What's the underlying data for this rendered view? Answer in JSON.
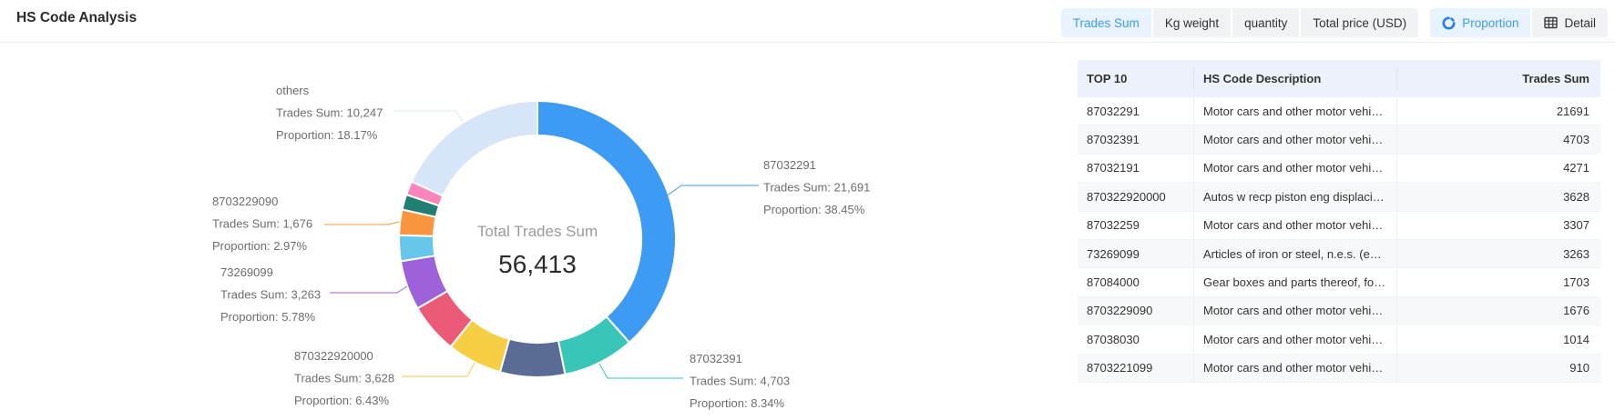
{
  "header": {
    "title": "HS Code Analysis"
  },
  "toolbar": {
    "metric_tabs": [
      {
        "label": "Trades Sum",
        "active": true
      },
      {
        "label": "Kg weight",
        "active": false
      },
      {
        "label": "quantity",
        "active": false
      },
      {
        "label": "Total price (USD)",
        "active": false
      }
    ],
    "view_tabs": [
      {
        "label": "Proportion",
        "icon": "pie-chart-icon",
        "active": true
      },
      {
        "label": "Detail",
        "icon": "table-icon",
        "active": false
      }
    ]
  },
  "chart_data": {
    "type": "pie",
    "center_title": "Total Trades Sum",
    "center_value": "56,413",
    "total": 56413,
    "label_prefix_value": "Trades Sum: ",
    "label_prefix_proportion": "Proportion: ",
    "legend_position": "none",
    "slices": [
      {
        "name": "87032291",
        "value": 21691,
        "value_label": "21,691",
        "proportion_label": "38.45%",
        "color": "#3E9BF4",
        "labeled": true
      },
      {
        "name": "87032391",
        "value": 4703,
        "value_label": "4,703",
        "proportion_label": "8.34%",
        "color": "#39C5B8",
        "labeled": true
      },
      {
        "name": "87032191",
        "value": 4271,
        "value_label": "4,271",
        "proportion_label": "7.57%",
        "color": "#5A6B96",
        "labeled": false
      },
      {
        "name": "870322920000",
        "value": 3628,
        "value_label": "3,628",
        "proportion_label": "6.43%",
        "color": "#F6CE45",
        "labeled": true
      },
      {
        "name": "87032259",
        "value": 3307,
        "value_label": "3,307",
        "proportion_label": "5.86%",
        "color": "#EB5B77",
        "labeled": false
      },
      {
        "name": "73269099",
        "value": 3263,
        "value_label": "3,263",
        "proportion_label": "5.78%",
        "color": "#9D62D9",
        "labeled": true
      },
      {
        "name": "87084000",
        "value": 1703,
        "value_label": "1,703",
        "proportion_label": "3.02%",
        "color": "#67C7EA",
        "labeled": false
      },
      {
        "name": "8703229090",
        "value": 1676,
        "value_label": "1,676",
        "proportion_label": "2.97%",
        "color": "#F9953F",
        "labeled": true
      },
      {
        "name": "87038030",
        "value": 1014,
        "value_label": "1,014",
        "proportion_label": "1.80%",
        "color": "#207E73",
        "labeled": false
      },
      {
        "name": "8703221099",
        "value": 910,
        "value_label": "910",
        "proportion_label": "1.61%",
        "color": "#F985BB",
        "labeled": false
      },
      {
        "name": "others",
        "value": 10247,
        "value_label": "10,247",
        "proportion_label": "18.17%",
        "color": "#D7E5F8",
        "labeled": true
      }
    ]
  },
  "table": {
    "columns": [
      {
        "label": "TOP 10",
        "align": "left"
      },
      {
        "label": "HS Code Description",
        "align": "left"
      },
      {
        "label": "Trades Sum",
        "align": "right"
      }
    ],
    "rows": [
      {
        "code": "87032291",
        "description": "Motor cars and other motor vehicles p...",
        "value": "21691"
      },
      {
        "code": "87032391",
        "description": "Motor cars and other motor vehicles p...",
        "value": "4703"
      },
      {
        "code": "87032191",
        "description": "Motor cars and other motor vehicles p...",
        "value": "4271"
      },
      {
        "code": "870322920000",
        "description": "Autos w recp piston eng displacing > ...",
        "value": "3628"
      },
      {
        "code": "87032259",
        "description": "Motor cars and other motor vehicles p...",
        "value": "3307"
      },
      {
        "code": "73269099",
        "description": "Articles of iron or steel, n.e.s. (excludi...",
        "value": "3263"
      },
      {
        "code": "87084000",
        "description": "Gear boxes and parts thereof, for tract...",
        "value": "1703"
      },
      {
        "code": "8703229090",
        "description": "Motor cars and other motor vehicles p...",
        "value": "1676"
      },
      {
        "code": "87038030",
        "description": "Motor cars and other motor vehicles p...",
        "value": "1014"
      },
      {
        "code": "8703221099",
        "description": "Motor cars and other motor vehicles p...",
        "value": "910"
      }
    ]
  },
  "colors": {
    "accent_blue": "#3D9CF4",
    "proportion_blue": "#2E7CEF",
    "active_tab_bg": "#E8F3FE",
    "tab_group_bg": "#F0F2F5",
    "table_header_bg": "#EDF1FB",
    "stripe_bg": "#F7F8FA"
  }
}
